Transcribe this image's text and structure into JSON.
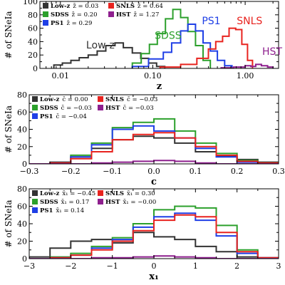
{
  "colors": {
    "Low-z": "#333333",
    "SDSS": "#2ca02c",
    "PS1": "#1f3fe6",
    "SNLS": "#e8231f",
    "HST": "#8e1f8e"
  },
  "chart_data": [
    {
      "type": "step",
      "xlabel": "z",
      "ylabel": "# of SNeIa",
      "xscale": "log",
      "xlim": [
        0.006,
        2.3
      ],
      "ylim": [
        0,
        100
      ],
      "xticks": [
        0.01,
        0.1,
        1.0
      ],
      "xticklabels": [
        "0.01",
        "0.10",
        "1.00"
      ],
      "yticks": [
        0,
        20,
        40,
        60,
        80,
        100
      ],
      "grid": false,
      "legend_position": "top-left",
      "legend": [
        {
          "key": "Low-z",
          "stat": "z̄ = 0.03"
        },
        {
          "key": "SNLS",
          "stat": "z̄ = 0.64"
        },
        {
          "key": "SDSS",
          "stat": "z̄ = 0.20"
        },
        {
          "key": "HST",
          "stat": "z̄ = 1.27"
        },
        {
          "key": "PS1",
          "stat": "z̄ = 0.29"
        }
      ],
      "annotations": [
        {
          "text": "Low-z",
          "series": "Low-z",
          "x": 0.019,
          "y": 30
        },
        {
          "text": "SDSS",
          "series": "SDSS",
          "x": 0.105,
          "y": 44
        },
        {
          "text": "PS1",
          "series": "PS1",
          "x": 0.34,
          "y": 66
        },
        {
          "text": "SNLS",
          "series": "SNLS",
          "x": 0.81,
          "y": 66
        },
        {
          "text": "HST",
          "series": "HST",
          "x": 1.53,
          "y": 20
        }
      ],
      "series": [
        {
          "name": "Low-z",
          "edges": [
            0.0085,
            0.0105,
            0.013,
            0.016,
            0.02,
            0.025,
            0.031,
            0.039,
            0.048,
            0.06,
            0.074,
            0.09,
            0.11,
            0.135
          ],
          "values": [
            5,
            8,
            12,
            16,
            20,
            26,
            34,
            38,
            31,
            23,
            15,
            8,
            3
          ]
        },
        {
          "name": "SDSS",
          "edges": [
            0.06,
            0.075,
            0.092,
            0.112,
            0.137,
            0.165,
            0.2,
            0.24,
            0.29,
            0.35,
            0.42
          ],
          "values": [
            8,
            22,
            36,
            52,
            74,
            88,
            76,
            55,
            34,
            12
          ]
        },
        {
          "name": "PS1",
          "edges": [
            0.06,
            0.09,
            0.13,
            0.16,
            0.2,
            0.24,
            0.29,
            0.35,
            0.42,
            0.5,
            0.6,
            0.72
          ],
          "values": [
            3,
            14,
            24,
            38,
            56,
            66,
            56,
            38,
            26,
            12,
            4
          ]
        },
        {
          "name": "SNLS",
          "edges": [
            0.12,
            0.2,
            0.3,
            0.4,
            0.48,
            0.57,
            0.67,
            0.79,
            0.92,
            1.06,
            1.2
          ],
          "values": [
            2,
            6,
            15,
            29,
            40,
            48,
            60,
            58,
            36,
            12
          ]
        },
        {
          "name": "HST",
          "edges": [
            0.55,
            0.75,
            1.0,
            1.15,
            1.3,
            1.5,
            1.75,
            2.0
          ],
          "values": [
            1,
            2,
            4,
            3,
            6,
            4,
            2
          ]
        }
      ]
    },
    {
      "type": "step",
      "xlabel": "c",
      "ylabel": "# of SNeIa",
      "xlim": [
        -0.3,
        0.3
      ],
      "ylim": [
        0,
        80
      ],
      "xticks": [
        -0.3,
        -0.2,
        -0.1,
        0.0,
        0.1,
        0.2,
        0.3
      ],
      "xticklabels": [
        "−0.3",
        "−0.2",
        "−0.1",
        "0.0",
        "0.1",
        "0.2",
        "0.3"
      ],
      "yticks": [
        0,
        20,
        40,
        60,
        80
      ],
      "grid": false,
      "legend_position": "top-left",
      "legend": [
        {
          "key": "Low-z",
          "stat": "c̄ = 0.00"
        },
        {
          "key": "SNLS",
          "stat": "c̄ = −0.03"
        },
        {
          "key": "SDSS",
          "stat": "c̄ = −0.03"
        },
        {
          "key": "HST",
          "stat": "c̄ = −0.03"
        },
        {
          "key": "PS1",
          "stat": "c̄ = −0.04"
        }
      ],
      "series": [
        {
          "name": "Low-z",
          "edges": [
            -0.3,
            -0.25,
            -0.2,
            -0.15,
            -0.1,
            -0.05,
            0.0,
            0.05,
            0.1,
            0.15,
            0.2,
            0.25,
            0.3
          ],
          "values": [
            0,
            2,
            8,
            18,
            28,
            32,
            30,
            24,
            14,
            9,
            5,
            2
          ]
        },
        {
          "name": "SDSS",
          "edges": [
            -0.3,
            -0.25,
            -0.2,
            -0.15,
            -0.1,
            -0.05,
            0.0,
            0.05,
            0.1,
            0.15,
            0.2,
            0.25,
            0.3
          ],
          "values": [
            0,
            1,
            10,
            24,
            42,
            48,
            52,
            38,
            24,
            12,
            4,
            1
          ]
        },
        {
          "name": "PS1",
          "edges": [
            -0.3,
            -0.25,
            -0.2,
            -0.15,
            -0.1,
            -0.05,
            0.0,
            0.05,
            0.1,
            0.15,
            0.2,
            0.25,
            0.3
          ],
          "values": [
            0,
            1,
            8,
            22,
            40,
            44,
            38,
            30,
            18,
            8,
            2,
            0
          ]
        },
        {
          "name": "SNLS",
          "edges": [
            -0.3,
            -0.25,
            -0.2,
            -0.15,
            -0.1,
            -0.05,
            0.0,
            0.05,
            0.1,
            0.15,
            0.2,
            0.25,
            0.3
          ],
          "values": [
            0,
            1,
            6,
            14,
            28,
            34,
            36,
            30,
            20,
            10,
            3,
            1
          ]
        },
        {
          "name": "HST",
          "edges": [
            -0.3,
            -0.25,
            -0.2,
            -0.15,
            -0.1,
            -0.05,
            0.0,
            0.05,
            0.1,
            0.15,
            0.2,
            0.25,
            0.3
          ],
          "values": [
            0,
            0,
            0,
            1,
            2,
            3,
            4,
            3,
            1,
            0,
            0,
            0
          ]
        }
      ]
    },
    {
      "type": "step",
      "xlabel": "x₁",
      "ylabel": "# of SNeIa",
      "xlim": [
        -3,
        3
      ],
      "ylim": [
        0,
        80
      ],
      "xticks": [
        -3,
        -2,
        -1,
        0,
        1,
        2,
        3
      ],
      "xticklabels": [
        "−3",
        "−2",
        "−1",
        "0",
        "1",
        "2",
        "3"
      ],
      "yticks": [
        0,
        20,
        40,
        60,
        80
      ],
      "grid": false,
      "legend_position": "top-left",
      "legend": [
        {
          "key": "Low-z",
          "stat": "x̄₁ = −0.45"
        },
        {
          "key": "SNLS",
          "stat": "x̄₁ = 0.30"
        },
        {
          "key": "SDSS",
          "stat": "x̄₁ = 0.17"
        },
        {
          "key": "HST",
          "stat": "x̄₁ = −0.00"
        },
        {
          "key": "PS1",
          "stat": "x̄₁ = 0.14"
        }
      ],
      "series": [
        {
          "name": "Low-z",
          "edges": [
            -3,
            -2.5,
            -2,
            -1.5,
            -1,
            -0.5,
            0,
            0.5,
            1,
            1.5,
            2,
            2.5,
            3
          ],
          "values": [
            2,
            12,
            20,
            22,
            18,
            30,
            25,
            22,
            14,
            8,
            2,
            0
          ]
        },
        {
          "name": "SDSS",
          "edges": [
            -3,
            -2.5,
            -2,
            -1.5,
            -1,
            -0.5,
            0,
            0.5,
            1,
            1.5,
            2,
            2.5,
            3
          ],
          "values": [
            0,
            2,
            6,
            14,
            24,
            40,
            56,
            60,
            58,
            38,
            10,
            1
          ]
        },
        {
          "name": "PS1",
          "edges": [
            -3,
            -2.5,
            -2,
            -1.5,
            -1,
            -0.5,
            0,
            0.5,
            1,
            1.5,
            2,
            2.5,
            3
          ],
          "values": [
            0,
            1,
            4,
            12,
            22,
            36,
            48,
            52,
            44,
            26,
            6,
            1
          ]
        },
        {
          "name": "SNLS",
          "edges": [
            -3,
            -2.5,
            -2,
            -1.5,
            -1,
            -0.5,
            0,
            0.5,
            1,
            1.5,
            2,
            2.5,
            3
          ],
          "values": [
            0,
            1,
            4,
            10,
            20,
            32,
            44,
            50,
            48,
            30,
            8,
            1
          ]
        },
        {
          "name": "HST",
          "edges": [
            -3,
            -2.5,
            -2,
            -1.5,
            -1,
            -0.5,
            0,
            0.5,
            1,
            1.5,
            2,
            2.5,
            3
          ],
          "values": [
            0,
            0,
            0,
            1,
            1,
            2,
            3,
            2,
            1,
            0,
            0,
            0
          ]
        }
      ]
    }
  ]
}
